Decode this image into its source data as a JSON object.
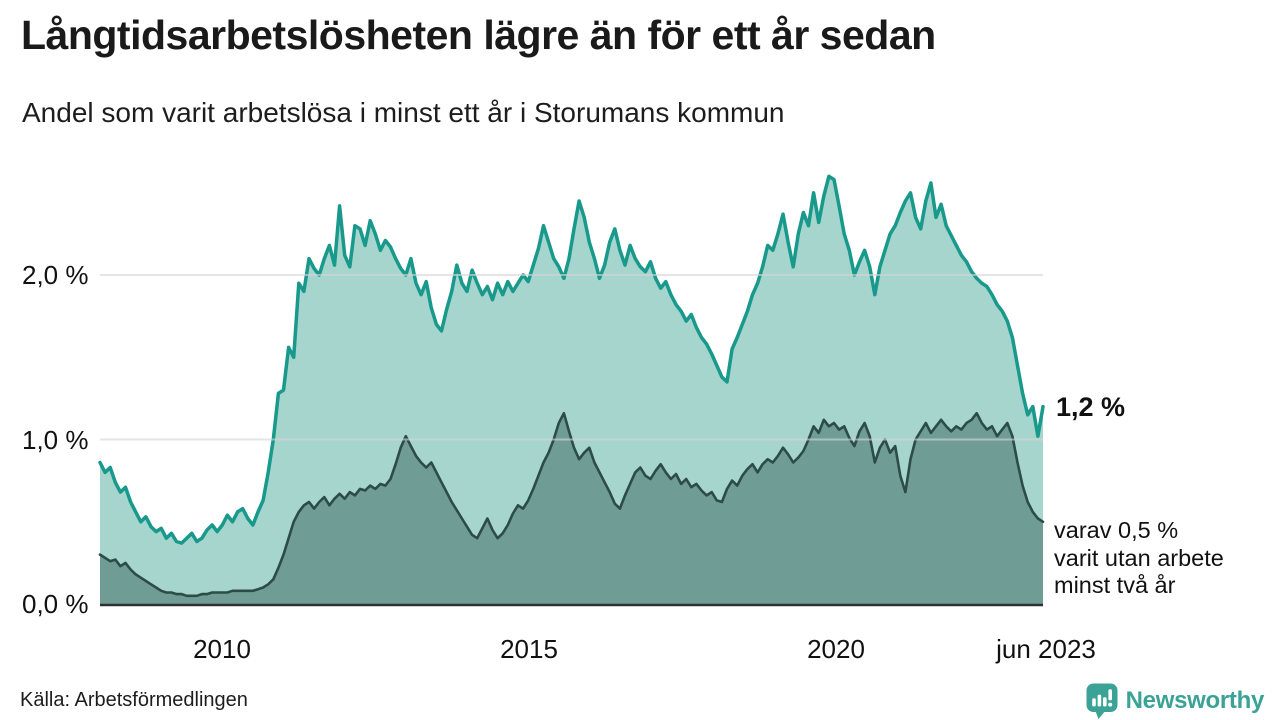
{
  "header": {
    "title": "Långtidsarbetslösheten lägre än för ett år sedan",
    "subtitle": "Andel som varit arbetslösa i minst ett år i Storumans kommun"
  },
  "footer": {
    "source": "Källa: Arbetsförmedlingen",
    "brand": "Newsworthy"
  },
  "colors": {
    "background": "#ffffff",
    "title_text": "#1a1a1a",
    "axis_text": "#111111",
    "gridline": "#d6d6d6",
    "baseline": "#303030",
    "series1_line": "#18998b",
    "series1_fill": "#a5d5cd",
    "series2_line": "#2d4c47",
    "series2_fill": "#6f9d96",
    "brand_teal": "#3aa296"
  },
  "chart_data": {
    "type": "area",
    "title": "Långtidsarbetslösheten lägre än för ett år sedan",
    "subtitle": "Andel som varit arbetslösa i minst ett år i Storumans kommun",
    "unit": "%",
    "frequency": "monthly",
    "x_start": "2008-01",
    "x_end": "2023-06",
    "ylim": [
      0,
      2.7
    ],
    "grid": true,
    "legend": "none",
    "yticks": [
      {
        "value": 0.0,
        "label": "0,0 %"
      },
      {
        "value": 1.0,
        "label": "1,0 %"
      },
      {
        "value": 2.0,
        "label": "2,0 %"
      }
    ],
    "xticks": [
      {
        "x": 2010.0,
        "label": "2010"
      },
      {
        "x": 2015.0,
        "label": "2015"
      },
      {
        "x": 2020.0,
        "label": "2020"
      },
      {
        "x": 2023.417,
        "label": "jun 2023"
      }
    ],
    "series": [
      {
        "name": "arbetslösa minst ett år",
        "line_color": "#18998b",
        "fill_color": "#a5d5cd",
        "line_width": 3.5,
        "end_value": 1.2,
        "values": [
          0.86,
          0.8,
          0.83,
          0.74,
          0.68,
          0.71,
          0.62,
          0.56,
          0.5,
          0.53,
          0.47,
          0.44,
          0.46,
          0.4,
          0.43,
          0.38,
          0.37,
          0.4,
          0.43,
          0.38,
          0.4,
          0.45,
          0.48,
          0.44,
          0.48,
          0.54,
          0.5,
          0.56,
          0.58,
          0.52,
          0.48,
          0.56,
          0.63,
          0.8,
          1.0,
          1.28,
          1.3,
          1.56,
          1.5,
          1.95,
          1.9,
          2.1,
          2.04,
          2.0,
          2.1,
          2.18,
          2.06,
          2.42,
          2.12,
          2.05,
          2.3,
          2.28,
          2.18,
          2.33,
          2.25,
          2.15,
          2.21,
          2.17,
          2.1,
          2.04,
          2.0,
          2.1,
          1.95,
          1.88,
          1.96,
          1.8,
          1.7,
          1.66,
          1.79,
          1.9,
          2.06,
          1.95,
          1.9,
          2.03,
          1.95,
          1.88,
          1.93,
          1.85,
          1.95,
          1.88,
          1.96,
          1.9,
          1.95,
          2.0,
          1.96,
          2.06,
          2.16,
          2.3,
          2.2,
          2.1,
          2.05,
          1.98,
          2.1,
          2.28,
          2.45,
          2.35,
          2.2,
          2.1,
          1.98,
          2.06,
          2.2,
          2.28,
          2.15,
          2.06,
          2.18,
          2.1,
          2.05,
          2.02,
          2.08,
          1.98,
          1.92,
          1.96,
          1.88,
          1.82,
          1.78,
          1.72,
          1.76,
          1.68,
          1.62,
          1.58,
          1.52,
          1.45,
          1.38,
          1.35,
          1.55,
          1.62,
          1.7,
          1.78,
          1.88,
          1.95,
          2.05,
          2.18,
          2.15,
          2.25,
          2.37,
          2.2,
          2.05,
          2.25,
          2.38,
          2.3,
          2.5,
          2.32,
          2.48,
          2.6,
          2.58,
          2.42,
          2.25,
          2.15,
          2.0,
          2.08,
          2.15,
          2.05,
          1.88,
          2.05,
          2.15,
          2.25,
          2.3,
          2.38,
          2.45,
          2.5,
          2.35,
          2.28,
          2.45,
          2.56,
          2.35,
          2.43,
          2.3,
          2.24,
          2.18,
          2.12,
          2.08,
          2.02,
          1.98,
          1.95,
          1.93,
          1.88,
          1.82,
          1.78,
          1.72,
          1.62,
          1.45,
          1.28,
          1.15,
          1.2,
          1.02,
          1.2
        ]
      },
      {
        "name": "arbetslösa minst två år",
        "line_color": "#2d4c47",
        "fill_color": "#6f9d96",
        "line_width": 2.6,
        "end_value": 0.5,
        "values": [
          0.3,
          0.28,
          0.26,
          0.27,
          0.23,
          0.25,
          0.21,
          0.18,
          0.16,
          0.14,
          0.12,
          0.1,
          0.08,
          0.07,
          0.07,
          0.06,
          0.06,
          0.05,
          0.05,
          0.05,
          0.06,
          0.06,
          0.07,
          0.07,
          0.07,
          0.07,
          0.08,
          0.08,
          0.08,
          0.08,
          0.08,
          0.09,
          0.1,
          0.12,
          0.15,
          0.22,
          0.3,
          0.4,
          0.5,
          0.56,
          0.6,
          0.62,
          0.58,
          0.62,
          0.65,
          0.6,
          0.64,
          0.67,
          0.64,
          0.68,
          0.66,
          0.7,
          0.69,
          0.72,
          0.7,
          0.73,
          0.72,
          0.76,
          0.85,
          0.95,
          1.02,
          0.96,
          0.9,
          0.86,
          0.83,
          0.86,
          0.8,
          0.74,
          0.68,
          0.62,
          0.57,
          0.52,
          0.47,
          0.42,
          0.4,
          0.46,
          0.52,
          0.45,
          0.4,
          0.43,
          0.48,
          0.55,
          0.6,
          0.58,
          0.63,
          0.7,
          0.78,
          0.86,
          0.92,
          1.0,
          1.1,
          1.16,
          1.05,
          0.95,
          0.88,
          0.92,
          0.95,
          0.86,
          0.8,
          0.74,
          0.68,
          0.61,
          0.58,
          0.66,
          0.73,
          0.8,
          0.83,
          0.78,
          0.76,
          0.81,
          0.85,
          0.8,
          0.76,
          0.79,
          0.73,
          0.76,
          0.71,
          0.73,
          0.69,
          0.66,
          0.68,
          0.63,
          0.62,
          0.7,
          0.75,
          0.72,
          0.78,
          0.82,
          0.85,
          0.8,
          0.85,
          0.88,
          0.86,
          0.9,
          0.95,
          0.91,
          0.86,
          0.89,
          0.93,
          1.0,
          1.08,
          1.04,
          1.12,
          1.08,
          1.1,
          1.06,
          1.08,
          1.01,
          0.96,
          1.05,
          1.1,
          1.02,
          0.86,
          0.95,
          1.0,
          0.92,
          0.96,
          0.78,
          0.68,
          0.88,
          1.0,
          1.05,
          1.1,
          1.04,
          1.08,
          1.12,
          1.08,
          1.05,
          1.08,
          1.06,
          1.1,
          1.12,
          1.16,
          1.1,
          1.06,
          1.08,
          1.02,
          1.06,
          1.1,
          1.02,
          0.86,
          0.72,
          0.62,
          0.56,
          0.52,
          0.5
        ]
      }
    ],
    "annotations": {
      "end_value_label": "1,2 %",
      "note_lines": [
        "varav 0,5 %",
        "varit utan arbete",
        "minst två år"
      ]
    }
  }
}
